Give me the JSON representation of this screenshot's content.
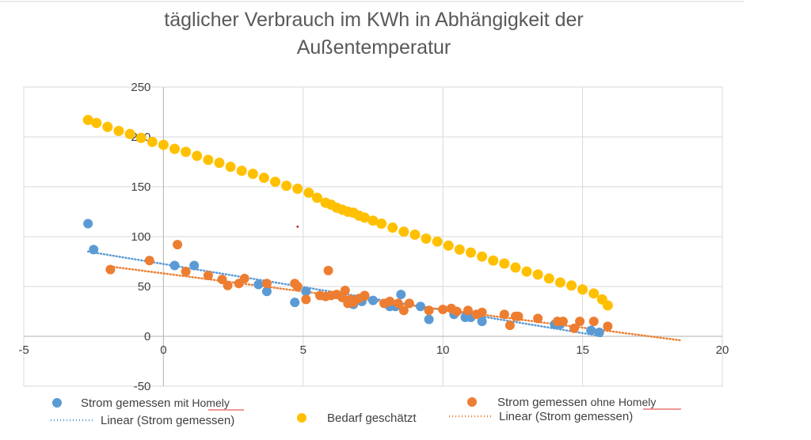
{
  "chart_data": {
    "type": "scatter",
    "title": "täglicher Verbrauch im KWh in Abhängigkeit der Außentemperatur",
    "title_lines": [
      "täglicher Verbrauch im KWh in Abhängigkeit der",
      "Außentemperatur"
    ],
    "xlabel": "",
    "ylabel": "",
    "xlim": [
      -5,
      20
    ],
    "ylim": [
      -50,
      250
    ],
    "x_ticks": [
      -5,
      0,
      5,
      10,
      15,
      20
    ],
    "y_ticks": [
      -50,
      0,
      50,
      100,
      150,
      200,
      250
    ],
    "grid": true,
    "legend_position": "bottom",
    "colors": {
      "mit_homely": "#5b9bd5",
      "ohne_homely": "#ed7d31",
      "bedarf": "#ffc000",
      "grid": "#d9d9d9",
      "axis": "#bfbfbf"
    },
    "series": [
      {
        "name": "Strom gemessen mit Homely",
        "key": "mit_homely",
        "label_main": "Strom gemessen",
        "label_suffix": "mit",
        "label_underlined": "Homely",
        "x": [
          -2.7,
          -2.5,
          0.4,
          1.1,
          3.4,
          3.7,
          4.7,
          5.1,
          6.4,
          6.8,
          7.1,
          7.5,
          8.1,
          8.3,
          8.5,
          9.2,
          9.5,
          10.4,
          10.8,
          11.0,
          11.4,
          14.0,
          14.2,
          15.3,
          15.6
        ],
        "y": [
          113,
          87,
          71,
          71,
          52,
          45,
          34,
          45,
          39,
          32,
          35,
          36,
          30,
          30,
          42,
          30,
          17,
          22,
          19,
          19,
          15,
          12,
          12,
          6,
          4
        ]
      },
      {
        "name": "Strom gemessen ohne Homely",
        "key": "ohne_homely",
        "label_main": "Strom gemessen",
        "label_suffix": "ohne",
        "label_underlined": "Homely",
        "x": [
          -1.9,
          -0.5,
          0.5,
          0.8,
          1.6,
          2.1,
          2.3,
          2.7,
          2.9,
          3.7,
          4.7,
          4.8,
          5.1,
          5.6,
          5.8,
          5.9,
          6.0,
          6.2,
          6.4,
          6.5,
          6.6,
          6.7,
          6.8,
          7.0,
          7.2,
          7.9,
          8.1,
          8.4,
          8.6,
          8.8,
          9.5,
          10.0,
          10.3,
          10.5,
          10.9,
          11.2,
          11.4,
          12.2,
          12.4,
          12.6,
          12.7,
          13.4,
          14.1,
          14.3,
          14.7,
          14.9,
          15.4,
          15.9
        ],
        "y": [
          67,
          76,
          92,
          65,
          61,
          57,
          51,
          53,
          58,
          53,
          53,
          50,
          37,
          41,
          40,
          66,
          41,
          42,
          39,
          46,
          33,
          37,
          34,
          38,
          41,
          33,
          35,
          33,
          26,
          33,
          26,
          27,
          28,
          25,
          26,
          22,
          24,
          22,
          11,
          20,
          20,
          18,
          15,
          15,
          8,
          15,
          15,
          10
        ]
      },
      {
        "name": "Bedarf geschätzt",
        "key": "bedarf",
        "label": "Bedarf geschätzt",
        "x": [
          -2.7,
          -2.4,
          -2.0,
          -1.6,
          -1.2,
          -0.8,
          -0.4,
          0.0,
          0.4,
          0.8,
          1.2,
          1.6,
          2.0,
          2.4,
          2.8,
          3.2,
          3.6,
          4.0,
          4.4,
          4.8,
          5.2,
          5.5,
          5.8,
          6.0,
          6.2,
          6.4,
          6.6,
          6.8,
          7.0,
          7.2,
          7.5,
          7.8,
          8.2,
          8.6,
          9.0,
          9.4,
          9.8,
          10.2,
          10.6,
          11.0,
          11.4,
          11.8,
          12.2,
          12.6,
          13.0,
          13.4,
          13.8,
          14.2,
          14.6,
          15.0,
          15.4,
          15.7,
          15.9
        ],
        "y": [
          217,
          214,
          210,
          206,
          203,
          199,
          195,
          192,
          188,
          185,
          181,
          177,
          174,
          170,
          166,
          163,
          159,
          155,
          151,
          148,
          144,
          139,
          134,
          132,
          129,
          127,
          125,
          124,
          121,
          119,
          116,
          113,
          109,
          105,
          102,
          98,
          95,
          91,
          87,
          84,
          80,
          76,
          73,
          69,
          65,
          62,
          58,
          54,
          51,
          47,
          43,
          37,
          31
        ]
      }
    ],
    "trendlines": [
      {
        "name": "Linear (Strom gemessen)",
        "key": "mit_homely",
        "x": [
          -2.7,
          15.7
        ],
        "y": [
          85,
          0
        ]
      },
      {
        "name": "Linear (Strom gemessen)",
        "key": "ohne_homely",
        "x": [
          -1.9,
          18.5
        ],
        "y": [
          70,
          -4
        ]
      }
    ],
    "annotations": [
      {
        "type": "marker",
        "x": 4.8,
        "y": 110,
        "color": "#c00000"
      }
    ]
  }
}
